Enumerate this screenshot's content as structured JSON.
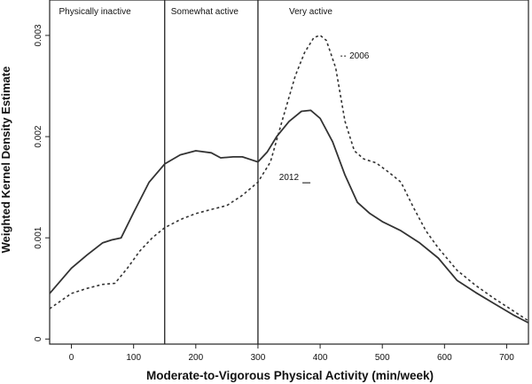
{
  "chart_data": {
    "type": "line",
    "title": "",
    "xlabel": "Moderate-to-Vigorous Physical Activity (min/week)",
    "ylabel": "Weighted Kernel Density Estimate",
    "xlim": [
      -35,
      735
    ],
    "ylim": [
      -5e-05,
      0.00335
    ],
    "xticks": [
      0,
      100,
      200,
      300,
      400,
      500,
      600,
      700
    ],
    "yticks": [
      {
        "value": 0,
        "label": "0"
      },
      {
        "value": 0.001,
        "label": "0.001"
      },
      {
        "value": 0.002,
        "label": "0.002"
      },
      {
        "value": 0.003,
        "label": "0.003"
      }
    ],
    "grid": false,
    "vlines": [
      150,
      300
    ],
    "regions": [
      {
        "label": "Physically inactive",
        "x": -20
      },
      {
        "label": "Somewhat active",
        "x": 160
      },
      {
        "label": "Very active",
        "x": 350
      }
    ],
    "series": [
      {
        "name": "2012",
        "style": "solid",
        "label_at": [
          390,
          0.00157
        ],
        "points": [
          [
            -35,
            0.00045
          ],
          [
            0,
            0.0007
          ],
          [
            25,
            0.00083
          ],
          [
            50,
            0.00095
          ],
          [
            65,
            0.00098
          ],
          [
            80,
            0.001
          ],
          [
            100,
            0.00125
          ],
          [
            125,
            0.00155
          ],
          [
            150,
            0.00173
          ],
          [
            175,
            0.00182
          ],
          [
            200,
            0.00186
          ],
          [
            225,
            0.00184
          ],
          [
            240,
            0.00179
          ],
          [
            260,
            0.0018
          ],
          [
            275,
            0.0018
          ],
          [
            290,
            0.00177
          ],
          [
            300,
            0.00175
          ],
          [
            315,
            0.00185
          ],
          [
            330,
            0.002
          ],
          [
            350,
            0.00215
          ],
          [
            370,
            0.00225
          ],
          [
            385,
            0.00226
          ],
          [
            400,
            0.00218
          ],
          [
            420,
            0.00195
          ],
          [
            440,
            0.00162
          ],
          [
            460,
            0.00135
          ],
          [
            480,
            0.00124
          ],
          [
            500,
            0.00116
          ],
          [
            530,
            0.00107
          ],
          [
            560,
            0.00095
          ],
          [
            590,
            0.0008
          ],
          [
            620,
            0.00058
          ],
          [
            650,
            0.00046
          ],
          [
            680,
            0.00035
          ],
          [
            710,
            0.00024
          ],
          [
            735,
            0.00016
          ]
        ]
      },
      {
        "name": "2006",
        "style": "dotted",
        "label_at": [
          450,
          0.00277
        ],
        "points": [
          [
            -35,
            0.0003
          ],
          [
            0,
            0.00045
          ],
          [
            25,
            0.0005
          ],
          [
            50,
            0.00054
          ],
          [
            70,
            0.00055
          ],
          [
            90,
            0.0007
          ],
          [
            110,
            0.00087
          ],
          [
            130,
            0.001
          ],
          [
            150,
            0.0011
          ],
          [
            175,
            0.00118
          ],
          [
            200,
            0.00124
          ],
          [
            225,
            0.00128
          ],
          [
            250,
            0.00132
          ],
          [
            275,
            0.00142
          ],
          [
            300,
            0.00155
          ],
          [
            320,
            0.00175
          ],
          [
            340,
            0.00218
          ],
          [
            360,
            0.0026
          ],
          [
            375,
            0.00283
          ],
          [
            390,
            0.00298
          ],
          [
            400,
            0.003
          ],
          [
            410,
            0.00295
          ],
          [
            425,
            0.00268
          ],
          [
            440,
            0.00215
          ],
          [
            455,
            0.00186
          ],
          [
            470,
            0.00178
          ],
          [
            490,
            0.00174
          ],
          [
            510,
            0.00165
          ],
          [
            530,
            0.00155
          ],
          [
            550,
            0.0013
          ],
          [
            570,
            0.00107
          ],
          [
            590,
            0.0009
          ],
          [
            620,
            0.00068
          ],
          [
            650,
            0.00053
          ],
          [
            680,
            0.0004
          ],
          [
            710,
            0.00028
          ],
          [
            735,
            0.00018
          ]
        ]
      }
    ]
  }
}
